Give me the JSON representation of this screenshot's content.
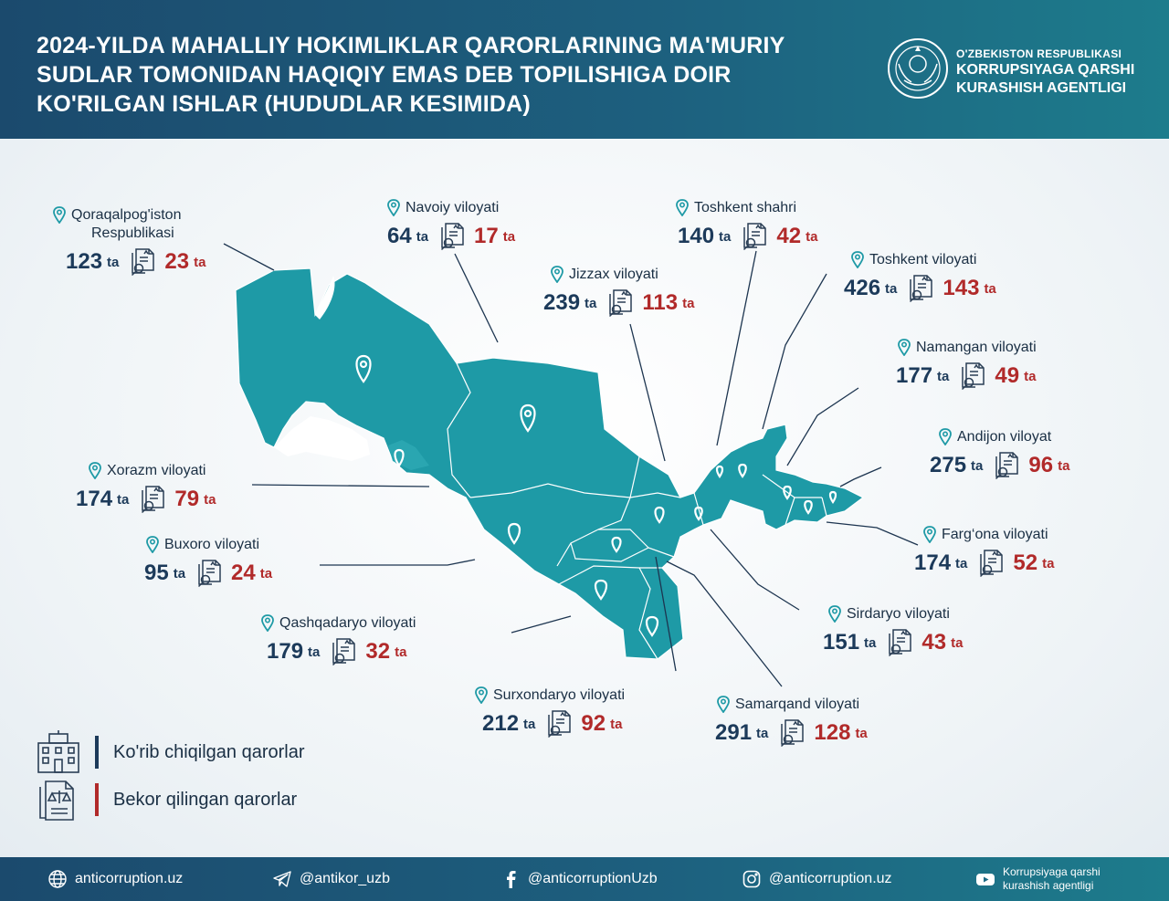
{
  "header": {
    "title_lines": [
      "2024-YILDA MAHALLIY HOKIMLIKLAR QARORLARINING MA'MURIY",
      "SUDLAR TOMONIDAN HAQIQIY EMAS DEB TOPILISHIGA DOIR",
      "KO'RILGAN ISHLAR (HUDUDLAR KESIMIDA)"
    ],
    "agency_line1": "O'ZBEKISTON RESPUBLIKASI",
    "agency_line2": "KORRUPSIYAGA QARSHI",
    "agency_line3": "KURASHISH AGENTLIGI"
  },
  "unit": "ta",
  "regions": [
    {
      "name": "Qoraqalpog'iston",
      "name2": "Respublikasi",
      "reviewed": 123,
      "cancelled": 23
    },
    {
      "name": "Navoiy viloyati",
      "reviewed": 64,
      "cancelled": 17
    },
    {
      "name": "Toshkent shahri",
      "reviewed": 140,
      "cancelled": 42
    },
    {
      "name": "Jizzax viloyati",
      "reviewed": 239,
      "cancelled": 113
    },
    {
      "name": "Toshkent viloyati",
      "reviewed": 426,
      "cancelled": 143
    },
    {
      "name": "Namangan viloyati",
      "reviewed": 177,
      "cancelled": 49
    },
    {
      "name": "Andijon viloyat",
      "reviewed": 275,
      "cancelled": 96
    },
    {
      "name": "Xorazm viloyati",
      "reviewed": 174,
      "cancelled": 79
    },
    {
      "name": "Farg‘ona viloyati",
      "reviewed": 174,
      "cancelled": 52
    },
    {
      "name": "Buxoro viloyati",
      "reviewed": 95,
      "cancelled": 24
    },
    {
      "name": "Sirdaryo viloyati",
      "reviewed": 151,
      "cancelled": 43
    },
    {
      "name": "Qashqadaryo viloyati",
      "reviewed": 179,
      "cancelled": 32
    },
    {
      "name": "Surxondaryo viloyati",
      "reviewed": 212,
      "cancelled": 92
    },
    {
      "name": "Samarqand viloyati",
      "reviewed": 291,
      "cancelled": 128
    }
  ],
  "legend": {
    "reviewed_label": "Ko'rib chiqilgan qarorlar",
    "cancelled_label": "Bekor qilingan qarorlar",
    "reviewed_color": "#1c3a5a",
    "cancelled_color": "#b12a2a"
  },
  "colors": {
    "map_fill": "#1e9aa6",
    "number_blue": "#1c3a5a",
    "number_red": "#b12a2a"
  },
  "footer": {
    "website": "anticorruption.uz",
    "telegram": "@antikor_uzb",
    "facebook": "@anticorruptionUzb",
    "instagram": "@anticorruption.uz",
    "youtube_line1": "Korrupsiyaga qarshi",
    "youtube_line2": "kurashish agentligi"
  }
}
